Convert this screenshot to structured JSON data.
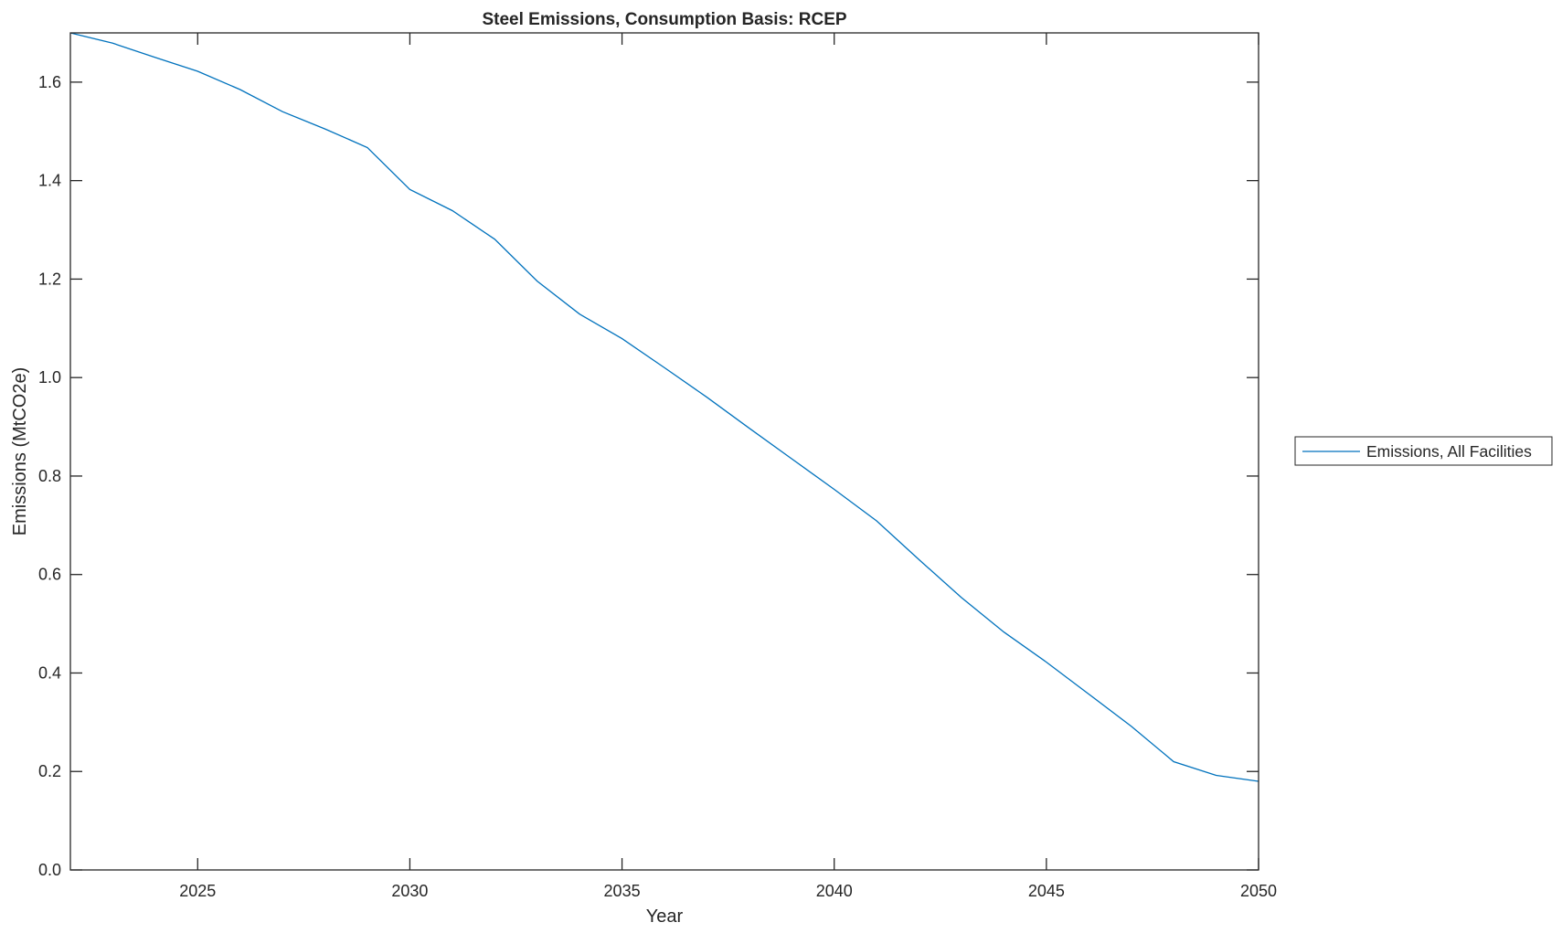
{
  "chart_data": {
    "type": "line",
    "title": "Steel Emissions, Consumption Basis: RCEP",
    "xlabel": "Year",
    "ylabel": "Emissions (MtCO2e)",
    "xlim": [
      2022,
      2050
    ],
    "ylim": [
      0,
      1.7
    ],
    "xticks": [
      2025,
      2030,
      2035,
      2040,
      2045,
      2050
    ],
    "xtick_labels": [
      "2025",
      "2030",
      "2035",
      "2040",
      "2045",
      "2050"
    ],
    "yticks": [
      0,
      0.2,
      0.4,
      0.6,
      0.8,
      1.0,
      1.2,
      1.4,
      1.6
    ],
    "ytick_labels": [
      "0.0",
      "0.2",
      "0.4",
      "0.6",
      "0.8",
      "1.0",
      "1.2",
      "1.4",
      "1.6"
    ],
    "grid": false,
    "legend_position": "outside-right",
    "x": [
      2022,
      2023,
      2024,
      2025,
      2026,
      2027,
      2028,
      2029,
      2030,
      2031,
      2032,
      2033,
      2034,
      2035,
      2036,
      2037,
      2038,
      2039,
      2040,
      2041,
      2042,
      2043,
      2044,
      2045,
      2046,
      2047,
      2048,
      2049,
      2050
    ],
    "series": [
      {
        "name": "Emissions, All Facilities",
        "color": "#0072BD",
        "values": [
          1.7,
          1.679,
          1.65,
          1.622,
          1.585,
          1.54,
          1.505,
          1.467,
          1.382,
          1.339,
          1.281,
          1.196,
          1.129,
          1.079,
          1.02,
          0.96,
          0.897,
          0.835,
          0.773,
          0.709,
          0.63,
          0.553,
          0.483,
          0.422,
          0.357,
          0.292,
          0.22,
          0.192,
          0.18
        ]
      }
    ]
  }
}
